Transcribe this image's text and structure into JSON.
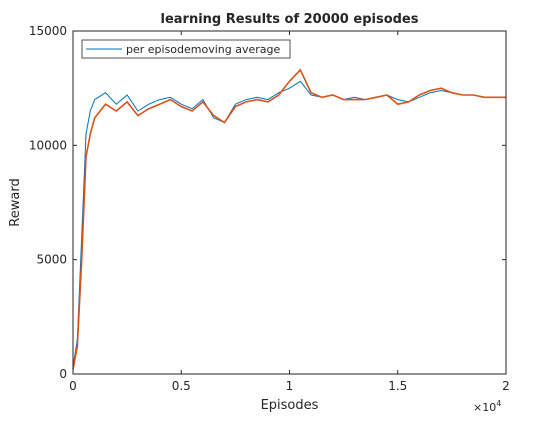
{
  "chart_data": {
    "type": "line",
    "title": "learning Results of 20000 episodes",
    "xlabel": "Episodes",
    "ylabel": "Reward",
    "xlim": [
      0,
      20000
    ],
    "ylim": [
      0,
      15000
    ],
    "x_tick_labels": [
      "0",
      "0.5",
      "1",
      "1.5",
      "2"
    ],
    "x_exponent_label": "×10",
    "x_exponent_power": "4",
    "y_tick_labels": [
      "0",
      "5000",
      "10000",
      "15000"
    ],
    "grid": false,
    "legend_position": "top-left",
    "legend_label": "per episodemoving average",
    "series": [
      {
        "color": "#0072BD",
        "x": [
          0,
          200,
          400,
          600,
          800,
          1000,
          1500,
          2000,
          2500,
          3000,
          3500,
          4000,
          4500,
          5000,
          5500,
          6000,
          6500,
          7000,
          7500,
          8000,
          8500,
          9000,
          9500,
          10000,
          10500,
          11000,
          11500,
          12000,
          12500,
          13000,
          13500,
          14000,
          14500,
          15000,
          15500,
          16000,
          16500,
          17000,
          17500,
          18000,
          18500,
          19000,
          19500,
          20000
        ],
        "values": [
          300,
          1500,
          6000,
          10500,
          11500,
          12000,
          12300,
          11800,
          12200,
          11500,
          11800,
          12000,
          12100,
          11800,
          11600,
          12000,
          11200,
          11000,
          11800,
          12000,
          12100,
          12000,
          12300,
          12500,
          12800,
          12200,
          12100,
          12200,
          12000,
          12100,
          12000,
          12100,
          12200,
          12000,
          11900,
          12100,
          12300,
          12400,
          12300,
          12200,
          12200,
          12100,
          12100,
          12100
        ]
      },
      {
        "color": "#D95319",
        "x": [
          0,
          200,
          400,
          600,
          800,
          1000,
          1500,
          2000,
          2500,
          3000,
          3500,
          4000,
          4500,
          5000,
          5500,
          6000,
          6500,
          7000,
          7500,
          8000,
          8500,
          9000,
          9500,
          10000,
          10500,
          11000,
          11500,
          12000,
          12500,
          13000,
          13500,
          14000,
          14500,
          15000,
          15500,
          16000,
          16500,
          17000,
          17500,
          18000,
          18500,
          19000,
          19500,
          20000
        ],
        "values": [
          200,
          1200,
          5000,
          9500,
          10500,
          11200,
          11800,
          11500,
          11900,
          11300,
          11600,
          11800,
          12000,
          11700,
          11500,
          11900,
          11300,
          11000,
          11700,
          11900,
          12000,
          11900,
          12200,
          12800,
          13300,
          12300,
          12100,
          12200,
          12000,
          12000,
          12000,
          12100,
          12200,
          11800,
          11900,
          12200,
          12400,
          12500,
          12300,
          12200,
          12200,
          12100,
          12100,
          12100
        ]
      }
    ]
  }
}
